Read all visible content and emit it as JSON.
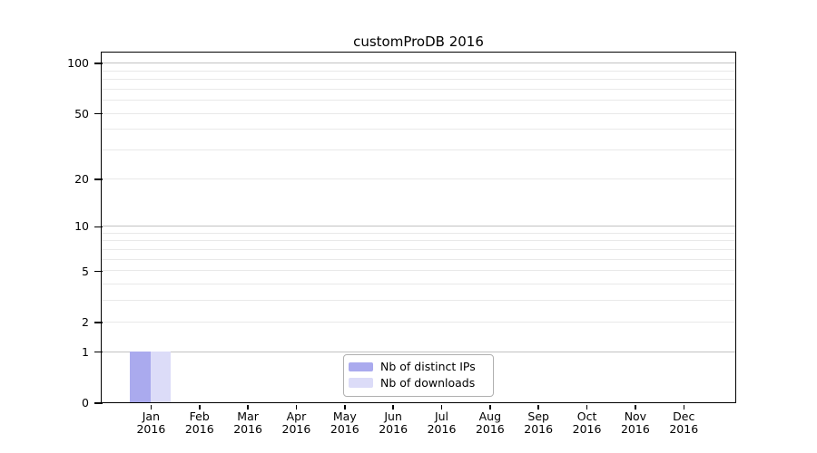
{
  "title": "customProDB 2016",
  "chart_data": {
    "type": "bar",
    "title": "customProDB 2016",
    "categories": [
      "Jan",
      "Feb",
      "Mar",
      "Apr",
      "May",
      "Jun",
      "Jul",
      "Aug",
      "Sep",
      "Oct",
      "Nov",
      "Dec"
    ],
    "category_year": "2016",
    "series": [
      {
        "name": "Nb of distinct IPs",
        "color": "#aaaaee",
        "values": [
          1,
          0,
          0,
          0,
          0,
          0,
          0,
          0,
          0,
          0,
          0,
          0
        ]
      },
      {
        "name": "Nb of downloads",
        "color": "#dcdcf8",
        "values": [
          1,
          0,
          0,
          0,
          0,
          0,
          0,
          0,
          0,
          0,
          0,
          0
        ]
      }
    ],
    "xlabel": "",
    "ylabel": "",
    "y_scale": "log1p",
    "y_ticks": [
      0,
      1,
      2,
      5,
      10,
      20,
      50,
      100
    ],
    "y_grid_major": [
      1,
      10,
      100
    ],
    "y_grid_minor": [
      2,
      3,
      4,
      5,
      6,
      7,
      8,
      9,
      20,
      30,
      40,
      50,
      60,
      70,
      80,
      90
    ],
    "ylim": [
      0,
      115
    ],
    "grid": true,
    "legend_position": "bottom-center",
    "colors": {
      "background": "#ffffff",
      "axis": "#000000",
      "grid_major": "#c2c2c2",
      "grid_minor": "#e9e9e9",
      "legend_border": "#b0b0b0"
    }
  }
}
